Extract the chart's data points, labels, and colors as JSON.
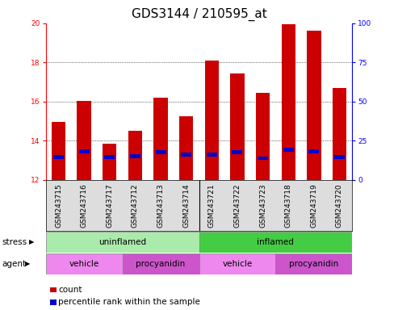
{
  "title": "GDS3144 / 210595_at",
  "samples": [
    "GSM243715",
    "GSM243716",
    "GSM243717",
    "GSM243712",
    "GSM243713",
    "GSM243714",
    "GSM243721",
    "GSM243722",
    "GSM243723",
    "GSM243718",
    "GSM243719",
    "GSM243720"
  ],
  "bar_heights": [
    14.95,
    16.05,
    13.85,
    14.5,
    16.2,
    15.25,
    18.1,
    17.45,
    16.45,
    19.95,
    19.6,
    16.7
  ],
  "bar_bottom": 12.0,
  "blue_marker_values": [
    13.15,
    13.45,
    13.15,
    13.2,
    13.4,
    13.3,
    13.3,
    13.4,
    13.1,
    13.55,
    13.45,
    13.15
  ],
  "bar_color": "#cc0000",
  "blue_color": "#0000cc",
  "ylim_left": [
    12,
    20
  ],
  "ylim_right": [
    0,
    100
  ],
  "yticks_left": [
    12,
    14,
    16,
    18,
    20
  ],
  "yticks_right": [
    0,
    25,
    50,
    75,
    100
  ],
  "stress_groups": [
    {
      "label": "uninflamed",
      "start": 0,
      "end": 6,
      "color": "#aaeaaa"
    },
    {
      "label": "inflamed",
      "start": 6,
      "end": 12,
      "color": "#44cc44"
    }
  ],
  "agent_groups": [
    {
      "label": "vehicle",
      "start": 0,
      "end": 3,
      "color": "#ee88ee"
    },
    {
      "label": "procyanidin",
      "start": 3,
      "end": 6,
      "color": "#cc55cc"
    },
    {
      "label": "vehicle",
      "start": 6,
      "end": 9,
      "color": "#ee88ee"
    },
    {
      "label": "procyanidin",
      "start": 9,
      "end": 12,
      "color": "#cc55cc"
    }
  ],
  "stress_label": "stress",
  "agent_label": "agent",
  "legend_count_label": "count",
  "legend_percentile_label": "percentile rank within the sample",
  "bar_width": 0.55,
  "title_fontsize": 11,
  "tick_fontsize": 6.5,
  "label_fontsize": 7.5
}
